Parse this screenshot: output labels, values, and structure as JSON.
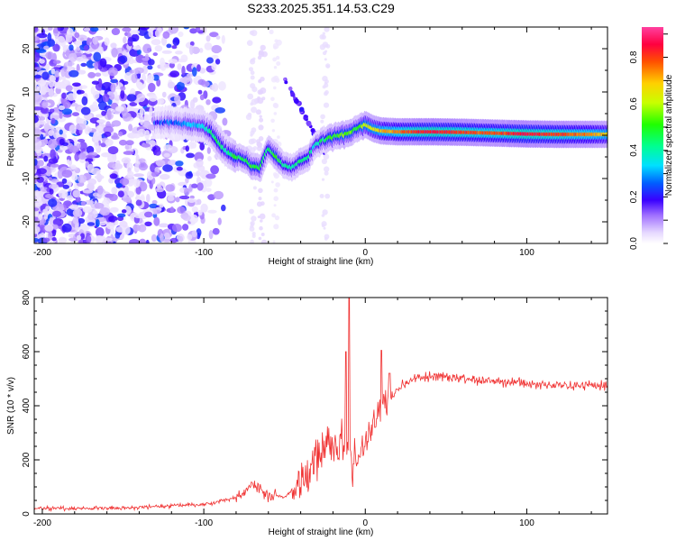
{
  "title": "S233.2025.351.14.53.C29",
  "chart_data": [
    {
      "type": "heatmap",
      "name": "spectrogram",
      "xlabel": "Height of straight line (km)",
      "ylabel": "Frequency (Hz)",
      "xlim": [
        -205,
        150
      ],
      "ylim": [
        -25,
        25
      ],
      "xticks": [
        -200,
        -100,
        0,
        100
      ],
      "yticks": [
        -20,
        -10,
        0,
        10,
        20
      ],
      "colorbar": {
        "label": "Normalized spectral amplitude",
        "range": [
          0.0,
          0.93
        ],
        "ticks": [
          0.0,
          0.2,
          0.4,
          0.6,
          0.8
        ],
        "tick_labels": [
          "0.0",
          "0.2",
          "0.4",
          "0.6",
          "0.8"
        ]
      },
      "ridge": {
        "x": [
          -130,
          -120,
          -110,
          -100,
          -95,
          -90,
          -85,
          -80,
          -75,
          -70,
          -65,
          -60,
          -55,
          -50,
          -45,
          -40,
          -35,
          -30,
          -25,
          -20,
          -15,
          -10,
          -5,
          0,
          5,
          10,
          20,
          40,
          60,
          80,
          100,
          120,
          150
        ],
        "freq": [
          3,
          3,
          2.5,
          2,
          0.5,
          -2,
          -4,
          -5,
          -5.5,
          -7,
          -7.5,
          -3,
          -5,
          -7,
          -7.5,
          -6,
          -5,
          -2,
          -1,
          -0.5,
          0,
          0.5,
          1.5,
          2.5,
          1.5,
          1,
          0.8,
          0.8,
          0.7,
          0.5,
          0.3,
          0.2,
          0.2
        ],
        "amp": [
          0.2,
          0.25,
          0.3,
          0.35,
          0.4,
          0.45,
          0.4,
          0.5,
          0.45,
          0.5,
          0.45,
          0.45,
          0.5,
          0.45,
          0.4,
          0.45,
          0.4,
          0.35,
          0.45,
          0.5,
          0.55,
          0.55,
          0.5,
          0.6,
          0.65,
          0.7,
          0.75,
          0.85,
          0.8,
          0.78,
          0.85,
          0.8,
          0.7
        ]
      }
    },
    {
      "type": "line",
      "name": "snr",
      "xlabel": "Height of straight line (km)",
      "ylabel": "SNR (10 * v/v)",
      "xlim": [
        -205,
        150
      ],
      "ylim": [
        0,
        800
      ],
      "xticks": [
        -200,
        -100,
        0,
        100
      ],
      "yticks": [
        0,
        200,
        400,
        600,
        800
      ],
      "color": "#f03030",
      "trend": {
        "x": [
          -205,
          -150,
          -100,
          -80,
          -70,
          -60,
          -50,
          -40,
          -30,
          -20,
          -15,
          -10,
          -5,
          0,
          5,
          10,
          20,
          30,
          40,
          60,
          80,
          100,
          120,
          150
        ],
        "y": [
          20,
          22,
          35,
          60,
          110,
          70,
          60,
          120,
          200,
          250,
          280,
          220,
          200,
          280,
          330,
          400,
          460,
          500,
          510,
          500,
          490,
          480,
          475,
          475
        ]
      }
    }
  ]
}
